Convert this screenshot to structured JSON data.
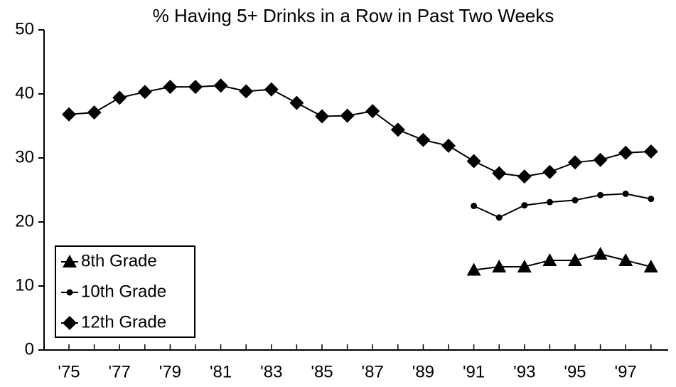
{
  "chart_data": {
    "type": "line",
    "title": "% Having 5+ Drinks in a Row in Past Two Weeks",
    "categories": [
      "'75",
      null,
      "'77",
      null,
      "'79",
      null,
      "'81",
      null,
      "'83",
      null,
      "'85",
      null,
      "'87",
      null,
      "'89",
      null,
      "'91",
      null,
      "'93",
      null,
      "'95",
      null,
      "'97",
      null
    ],
    "series": [
      {
        "name": "8th Grade",
        "color": "#000000",
        "marker": "triangle",
        "values": [
          null,
          null,
          null,
          null,
          null,
          null,
          null,
          null,
          null,
          null,
          null,
          null,
          null,
          null,
          null,
          null,
          12.5,
          13.0,
          13.0,
          14.0,
          14.0,
          15.0,
          14.0,
          13.0
        ]
      },
      {
        "name": "10th Grade",
        "color": "#000000",
        "marker": "circle",
        "values": [
          null,
          null,
          null,
          null,
          null,
          null,
          null,
          null,
          null,
          null,
          null,
          null,
          null,
          null,
          null,
          null,
          22.5,
          20.7,
          22.6,
          23.1,
          23.4,
          24.2,
          24.4,
          23.6
        ]
      },
      {
        "name": "12th Grade",
        "color": "#000000",
        "marker": "diamond",
        "values": [
          36.8,
          37.1,
          39.4,
          40.3,
          41.1,
          41.1,
          41.3,
          40.4,
          40.7,
          38.6,
          36.5,
          36.6,
          37.3,
          34.4,
          32.8,
          31.9,
          29.5,
          27.6,
          27.1,
          27.8,
          29.3,
          29.7,
          30.8,
          31.0
        ]
      }
    ],
    "ylim": [
      0,
      50
    ],
    "yticks": [
      0,
      10,
      20,
      30,
      40,
      50
    ],
    "legend": "lower left",
    "grid": false
  }
}
